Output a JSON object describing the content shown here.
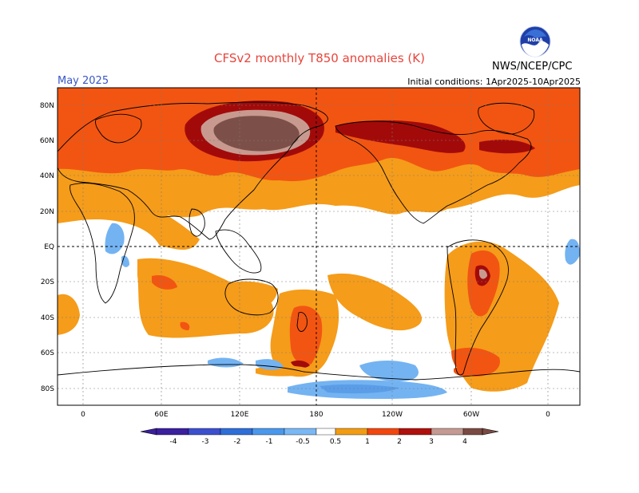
{
  "header": {
    "title": "CFSv2 monthly T850 anomalies (K)",
    "month": "May 2025",
    "initial_conditions": "Initial conditions: 1Apr2025-10Apr2025",
    "agency": "NWS/NCEP/CPC",
    "logo_text": "NOAA"
  },
  "axes": {
    "lat_labels": [
      "80N",
      "60N",
      "40N",
      "20N",
      "EQ",
      "20S",
      "40S",
      "60S",
      "80S"
    ],
    "lon_labels": [
      "0",
      "60E",
      "120E",
      "180",
      "120W",
      "60W",
      "0"
    ]
  },
  "colorbar": {
    "labels": [
      "-4",
      "-3",
      "-2",
      "-1",
      "-0.5",
      "0.5",
      "1",
      "2",
      "3",
      "4"
    ],
    "colors": [
      "#3a1f9e",
      "#3b4fcf",
      "#2e6ed8",
      "#4a98ee",
      "#79b8f5",
      "#ffffff",
      "#f39c12",
      "#f2460e",
      "#b0100c",
      "#c49a92",
      "#7a4b43"
    ]
  },
  "palette": {
    "orange": "#f59c1a",
    "red_orange": "#f25511",
    "dark_red": "#a20a0a",
    "rose": "#c89a8f",
    "brown": "#7c5048",
    "light_blue": "#74b3f2",
    "mid_blue": "#5a9de8"
  }
}
